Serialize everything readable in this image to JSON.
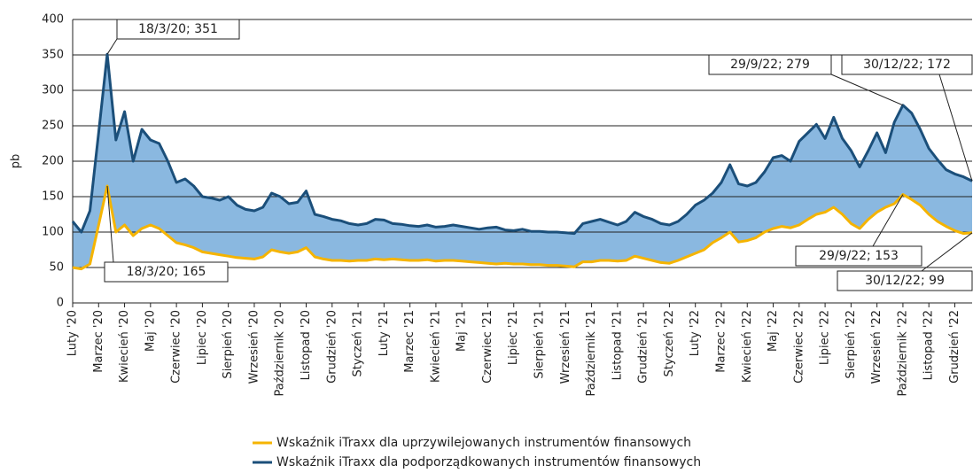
{
  "chart_data": {
    "type": "line",
    "y_label": "pb",
    "ylim": [
      0,
      400
    ],
    "yticks": [
      0,
      50,
      100,
      150,
      200,
      250,
      300,
      350,
      400
    ],
    "grid": true,
    "categories": [
      "Luty '20",
      null,
      null,
      "Marzec '20",
      null,
      null,
      "Kwiecień '20",
      null,
      null,
      "Maj '20",
      null,
      null,
      "Czerwiec '20",
      null,
      null,
      "Lipiec '20",
      null,
      null,
      "Sierpień '20",
      null,
      null,
      "Wrzesień '20",
      null,
      null,
      "Październik '20",
      null,
      null,
      "Listopad '20",
      null,
      null,
      "Grudzień '20",
      null,
      null,
      "Styczeń '21",
      null,
      null,
      "Luty '21",
      null,
      null,
      "Marzec '21",
      null,
      null,
      "Kwiecień '21",
      null,
      null,
      "Maj '21",
      null,
      null,
      "Czerwiec '21",
      null,
      null,
      "Lipiec '21",
      null,
      null,
      "Sierpień '21",
      null,
      null,
      "Wrzesień '21",
      null,
      null,
      "Październik '21",
      null,
      null,
      "Listopad '21",
      null,
      null,
      "Grudzień '21",
      null,
      null,
      "Styczeń '22",
      null,
      null,
      "Luty '22",
      null,
      null,
      "Marzec '22",
      null,
      null,
      "Kwiecień '22",
      null,
      null,
      "Maj '22",
      null,
      null,
      "Czerwiec '22",
      null,
      null,
      "Lipiec '22",
      null,
      null,
      "Sierpień '22",
      null,
      null,
      "Wrzesień '22",
      null,
      null,
      "Październik '22",
      null,
      null,
      "Listopad '22",
      null,
      null,
      "Grudzień '22",
      null,
      null
    ],
    "series": [
      {
        "name": "Wskaźnik iTraxx dla uprzywilejowanych instrumentów finansowych",
        "color": "#f5b400",
        "values": [
          50,
          48,
          55,
          110,
          165,
          100,
          110,
          95,
          105,
          110,
          105,
          95,
          85,
          82,
          78,
          72,
          70,
          68,
          66,
          64,
          63,
          62,
          65,
          75,
          72,
          70,
          72,
          78,
          65,
          62,
          60,
          60,
          59,
          60,
          60,
          62,
          61,
          62,
          61,
          60,
          60,
          61,
          59,
          60,
          60,
          59,
          58,
          57,
          56,
          55,
          56,
          55,
          55,
          54,
          54,
          53,
          53,
          52,
          51,
          58,
          58,
          60,
          60,
          59,
          60,
          66,
          63,
          60,
          57,
          56,
          60,
          65,
          70,
          75,
          85,
          92,
          100,
          86,
          88,
          92,
          100,
          105,
          108,
          106,
          110,
          118,
          125,
          128,
          135,
          125,
          112,
          105,
          118,
          128,
          135,
          140,
          153,
          146,
          138,
          125,
          115,
          108,
          102,
          98,
          99
        ]
      },
      {
        "name": "Wskaźnik iTraxx dla podporządkowanych instrumentów finansowych",
        "color": "#1b4f7a",
        "values": [
          115,
          100,
          130,
          240,
          351,
          230,
          270,
          200,
          245,
          230,
          225,
          200,
          170,
          175,
          165,
          150,
          148,
          145,
          150,
          138,
          132,
          130,
          135,
          155,
          150,
          140,
          142,
          158,
          125,
          122,
          118,
          116,
          112,
          110,
          112,
          118,
          117,
          112,
          111,
          109,
          108,
          110,
          107,
          108,
          110,
          108,
          106,
          104,
          106,
          107,
          103,
          102,
          104,
          101,
          101,
          100,
          100,
          99,
          98,
          112,
          115,
          118,
          114,
          110,
          115,
          128,
          122,
          118,
          112,
          110,
          115,
          125,
          138,
          145,
          155,
          170,
          195,
          168,
          165,
          170,
          185,
          205,
          208,
          200,
          228,
          240,
          252,
          232,
          262,
          232,
          215,
          192,
          215,
          240,
          212,
          255,
          279,
          268,
          245,
          218,
          202,
          188,
          182,
          178,
          172
        ]
      }
    ],
    "fill_color": "#8ab8e0",
    "annotations": [
      {
        "text": "18/3/20; 351"
      },
      {
        "text": "18/3/20; 165"
      },
      {
        "text": "29/9/22; 279"
      },
      {
        "text": "29/9/22; 153"
      },
      {
        "text": "30/12/22; 172"
      },
      {
        "text": "30/12/22; 99"
      }
    ]
  }
}
